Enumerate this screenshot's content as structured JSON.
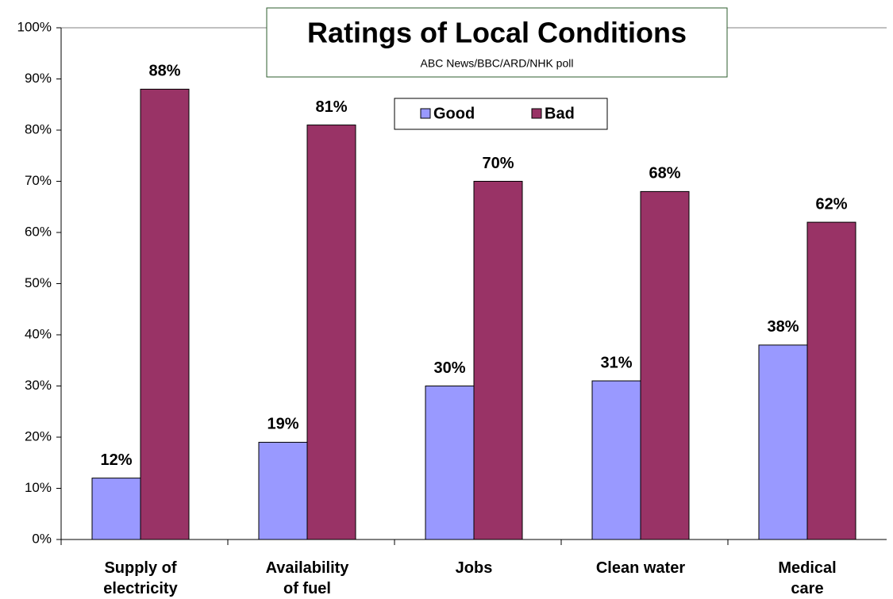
{
  "chart_data": {
    "type": "bar",
    "title": "Ratings of Local Conditions",
    "subtitle": "ABC News/BBC/ARD/NHK poll",
    "categories": [
      "Supply of electricity",
      "Availability of fuel",
      "Jobs",
      "Clean water",
      "Medical care"
    ],
    "series": [
      {
        "name": "Good",
        "color": "#9999ff",
        "values": [
          12,
          19,
          30,
          31,
          38
        ],
        "value_labels": [
          "12%",
          "19%",
          "30%",
          "31%",
          "38%"
        ]
      },
      {
        "name": "Bad",
        "color": "#993366",
        "values": [
          88,
          81,
          70,
          68,
          62
        ],
        "value_labels": [
          "88%",
          "81%",
          "70%",
          "68%",
          "62%"
        ]
      }
    ],
    "ylim": [
      0,
      100
    ],
    "yticks": [
      {
        "value": 0,
        "label": "0%"
      },
      {
        "value": 10,
        "label": "10%"
      },
      {
        "value": 20,
        "label": "20%"
      },
      {
        "value": 30,
        "label": "30%"
      },
      {
        "value": 40,
        "label": "40%"
      },
      {
        "value": 50,
        "label": "50%"
      },
      {
        "value": 60,
        "label": "60%"
      },
      {
        "value": 70,
        "label": "70%"
      },
      {
        "value": 80,
        "label": "80%"
      },
      {
        "value": 90,
        "label": "90%"
      },
      {
        "value": 100,
        "label": "100%"
      }
    ],
    "grid": false,
    "legend": "top"
  }
}
